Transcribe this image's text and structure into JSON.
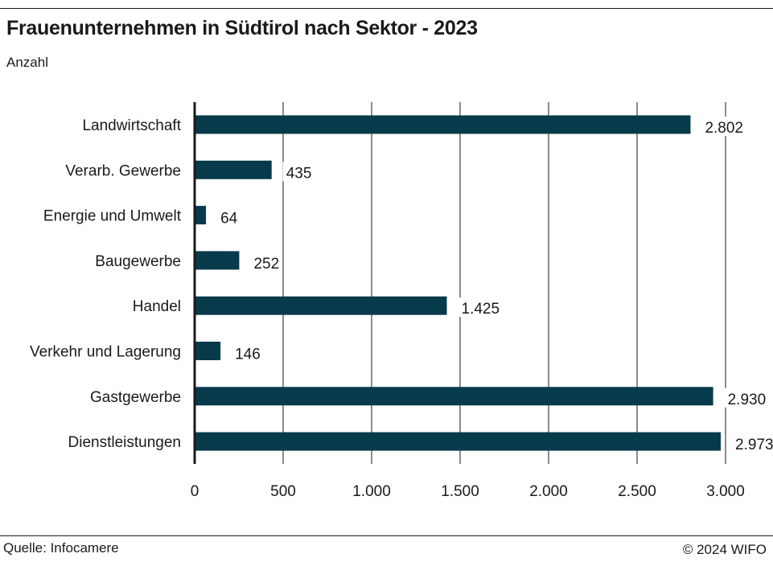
{
  "header": {
    "title": "Frauenunternehmen in Südtirol nach Sektor - 2023",
    "subtitle": "Anzahl"
  },
  "footer": {
    "source": "Quelle: Infocamere",
    "copyright": "© 2024 WIFO"
  },
  "colors": {
    "bar": "#073a4a",
    "grid": "#1a1a1a",
    "axis": "#1a1a1a"
  },
  "chart_data": {
    "type": "bar",
    "orientation": "horizontal",
    "title": "Frauenunternehmen in Südtirol nach Sektor - 2023",
    "subtitle": "Anzahl",
    "categories": [
      "Landwirtschaft",
      "Verarb. Gewerbe",
      "Energie und Umwelt",
      "Baugewerbe",
      "Handel",
      "Verkehr und Lagerung",
      "Gastgewerbe",
      "Dienstleistungen"
    ],
    "values": [
      2802,
      435,
      64,
      252,
      1425,
      146,
      2930,
      2973
    ],
    "value_labels": [
      "2.802",
      "435",
      "64",
      "252",
      "1.425",
      "146",
      "2.930",
      "2.973"
    ],
    "xlim": [
      0,
      3000
    ],
    "xticks": [
      0,
      500,
      1000,
      1500,
      2000,
      2500,
      3000
    ],
    "xtick_labels": [
      "0",
      "500",
      "1.000",
      "1.500",
      "2.000",
      "2.500",
      "3.000"
    ],
    "grid": "vertical",
    "legend": "none"
  }
}
